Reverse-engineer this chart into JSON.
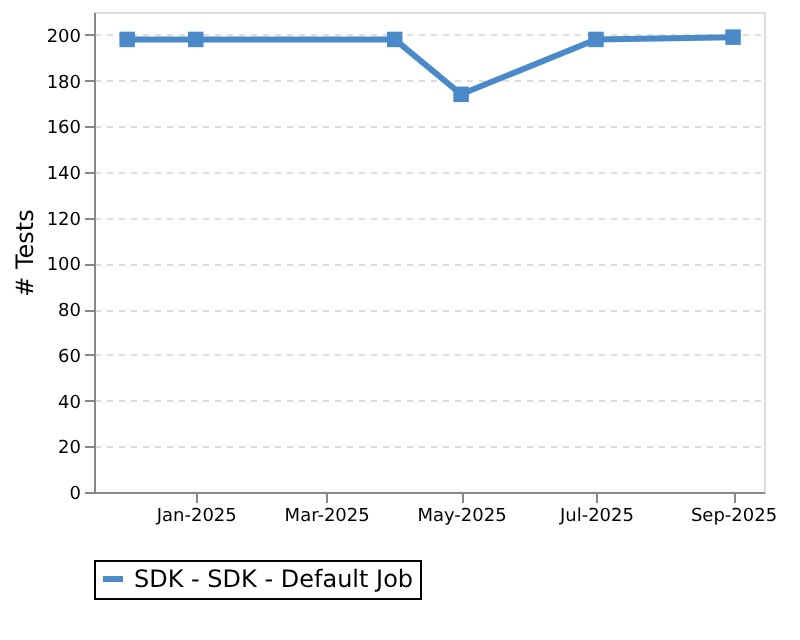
{
  "chart_data": {
    "type": "line",
    "ylabel": "# Tests",
    "x": [
      "2024-12-01",
      "2025-01-01",
      "2025-04-01",
      "2025-05-01",
      "2025-07-01",
      "2025-09-01"
    ],
    "series": [
      {
        "name": "SDK - SDK - Default Job",
        "color": "#4a8ac9",
        "values": [
          198,
          198,
          198,
          174,
          198,
          199
        ]
      }
    ],
    "xlim": [
      "2024-11-16",
      "2025-09-15"
    ],
    "xticks": [
      {
        "value": "2025-01-01",
        "label": "Jan-2025"
      },
      {
        "value": "2025-03-01",
        "label": "Mar-2025"
      },
      {
        "value": "2025-05-01",
        "label": "May-2025"
      },
      {
        "value": "2025-07-01",
        "label": "Jul-2025"
      },
      {
        "value": "2025-09-01",
        "label": "Sep-2025"
      }
    ],
    "ylim": [
      0,
      210
    ],
    "yticks": [
      0,
      20,
      40,
      60,
      80,
      100,
      120,
      140,
      160,
      180,
      200
    ],
    "grid": "y",
    "legend": "bottom",
    "marker": "square",
    "line_style": "solid"
  }
}
